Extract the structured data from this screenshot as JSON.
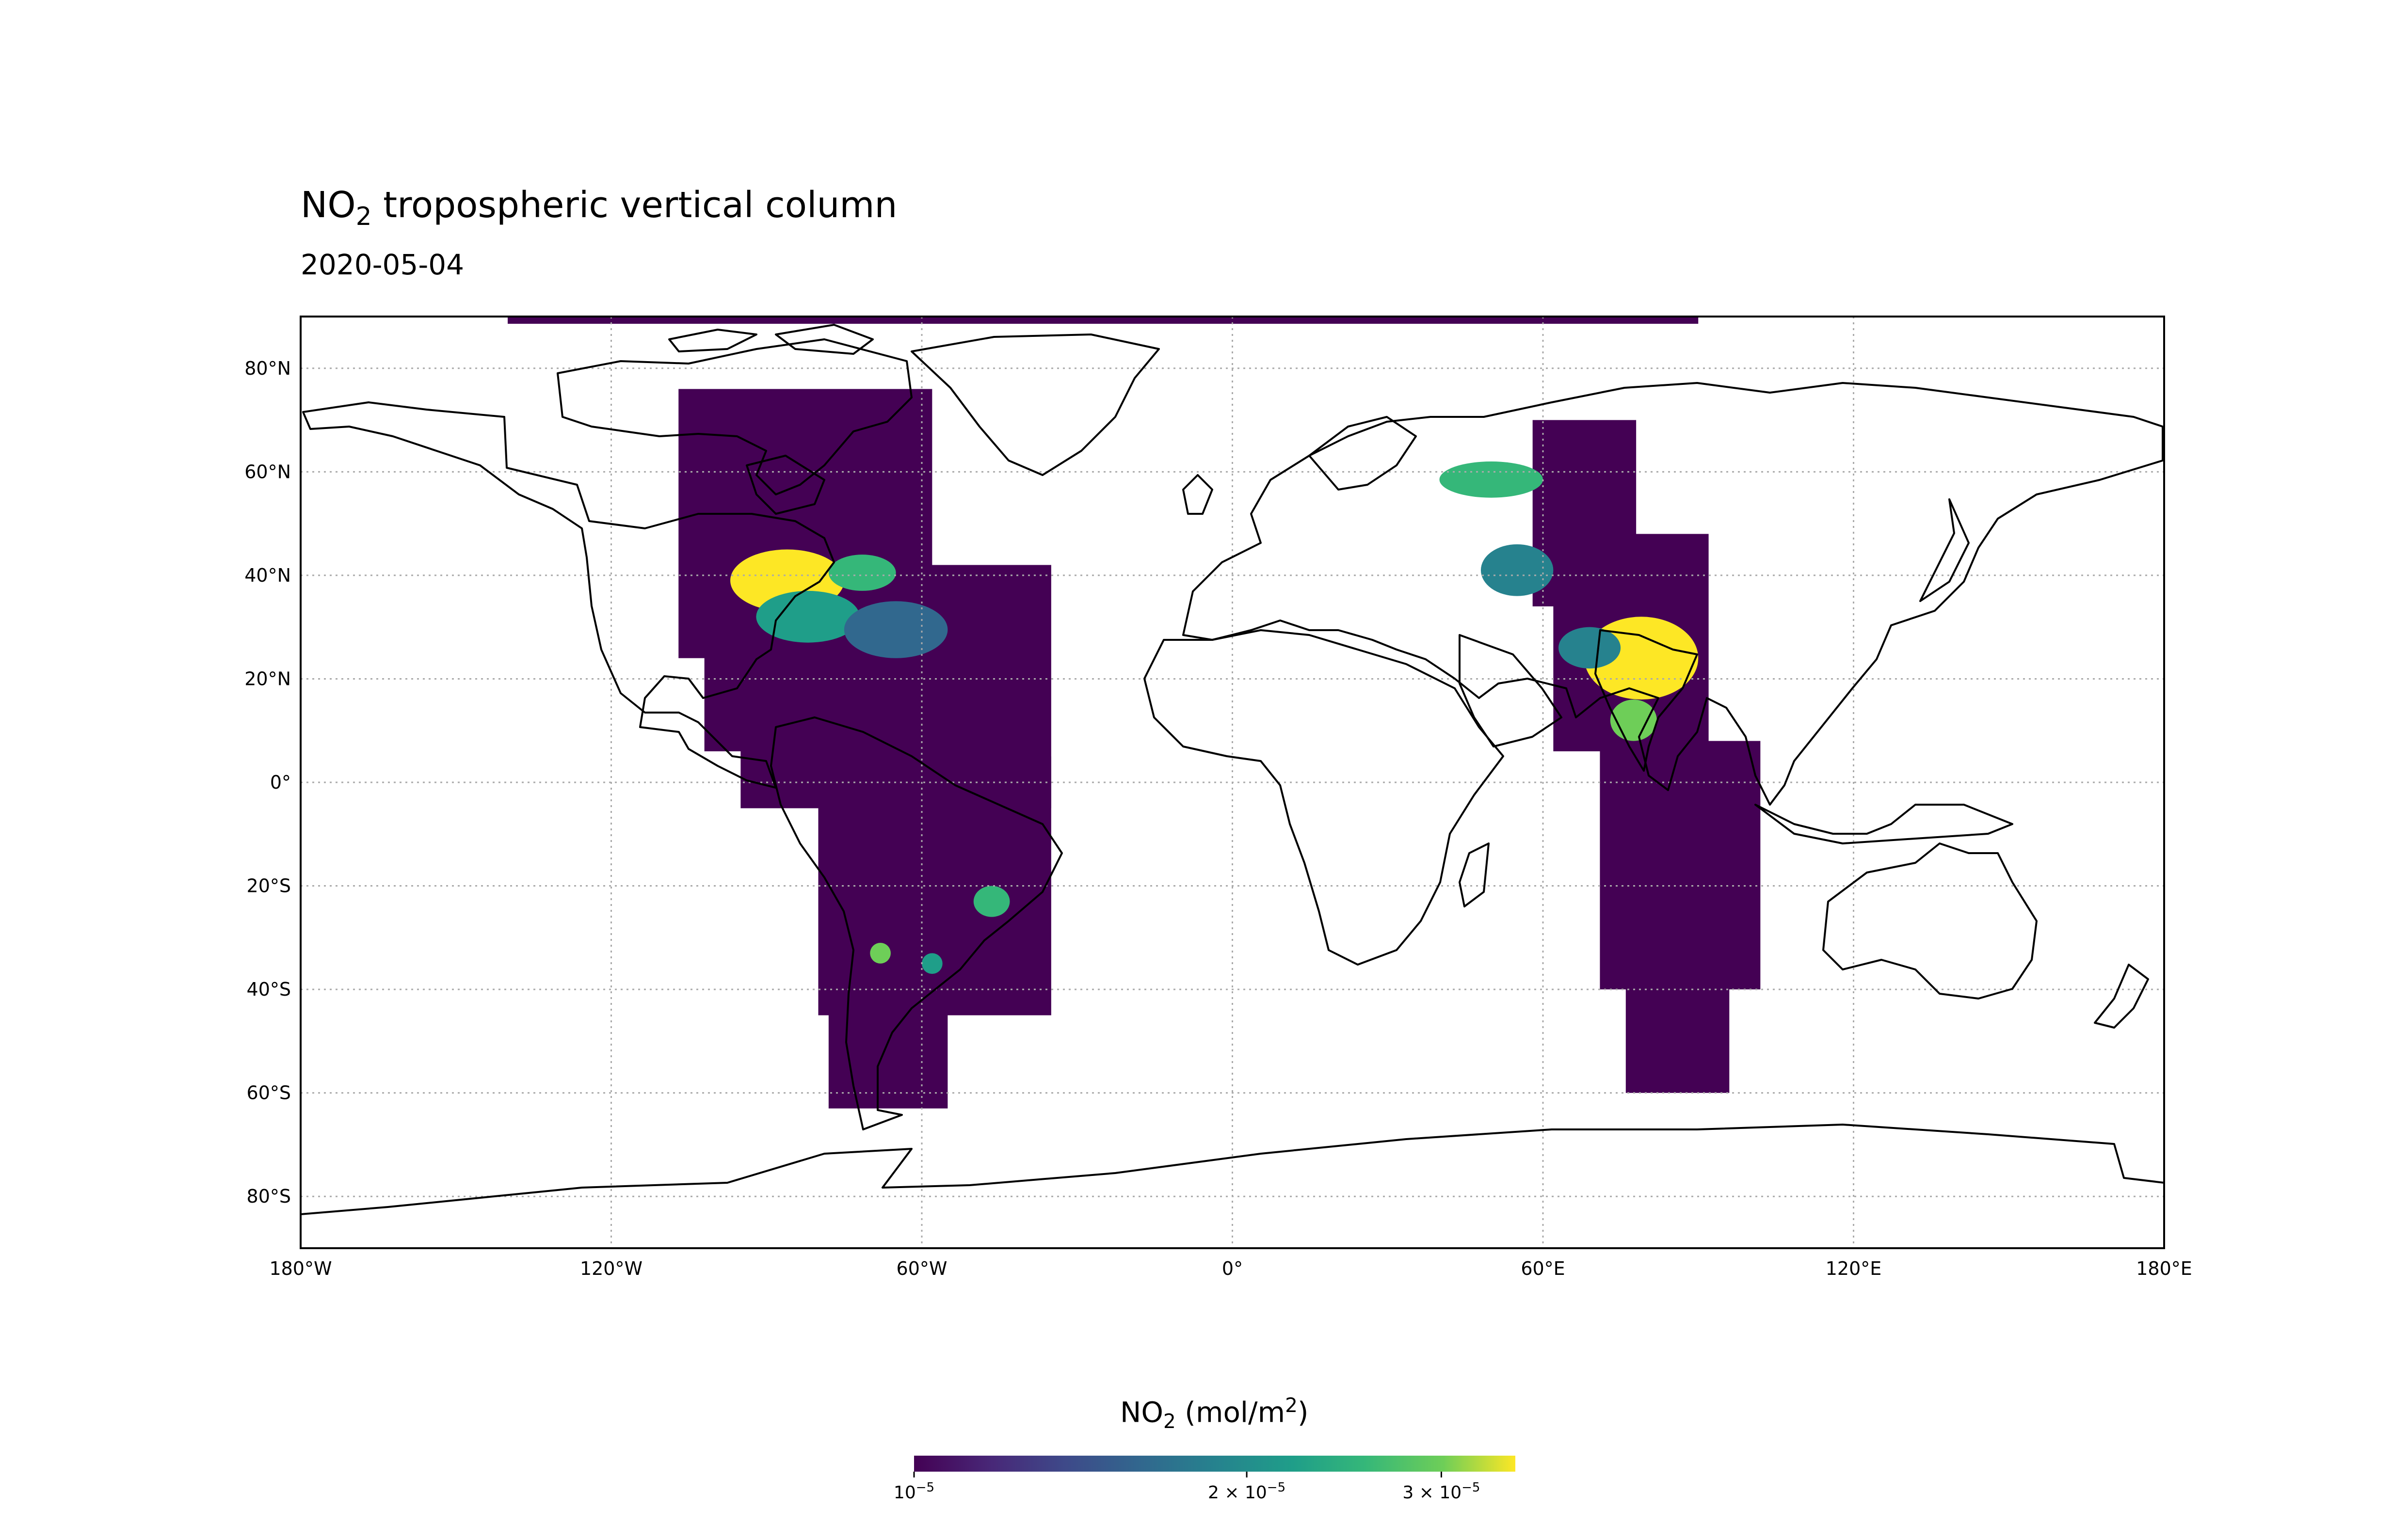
{
  "title": {
    "prefix": "NO",
    "sub": "2",
    "rest": " tropospheric vertical column"
  },
  "subtitle": "2020-05-04",
  "chart_data": {
    "type": "heatmap",
    "projection": "PlateCarree",
    "extent": {
      "lon": [
        -180,
        180
      ],
      "lat": [
        -90,
        90
      ]
    },
    "grid": "dotted",
    "x_ticks": [
      {
        "value": -180,
        "label": "180°W"
      },
      {
        "value": -120,
        "label": "120°W"
      },
      {
        "value": -60,
        "label": "60°W"
      },
      {
        "value": 0,
        "label": "0°"
      },
      {
        "value": 60,
        "label": "60°E"
      },
      {
        "value": 120,
        "label": "120°E"
      },
      {
        "value": 180,
        "label": "180°E"
      }
    ],
    "y_ticks": [
      {
        "value": 80,
        "label": "80°N"
      },
      {
        "value": 60,
        "label": "60°N"
      },
      {
        "value": 40,
        "label": "40°N"
      },
      {
        "value": 20,
        "label": "20°N"
      },
      {
        "value": 0,
        "label": "0°"
      },
      {
        "value": -20,
        "label": "20°S"
      },
      {
        "value": -40,
        "label": "40°S"
      },
      {
        "value": -60,
        "label": "60°S"
      },
      {
        "value": -80,
        "label": "80°S"
      }
    ],
    "colormap": "viridis",
    "colorbar": {
      "label": {
        "prefix": "NO",
        "sub": "2",
        "mid": " (mol/m",
        "sup": "2",
        "end": ")"
      },
      "scale": "log",
      "range": [
        1e-05,
        3.5e-05
      ],
      "ticks": [
        {
          "value": 1e-05,
          "label": "10",
          "exp": "−5"
        },
        {
          "value": 2e-05,
          "label": "2 × 10",
          "exp": "−5"
        },
        {
          "value": 3e-05,
          "label": "3 × 10",
          "exp": "−5"
        }
      ]
    },
    "swaths": [
      {
        "lon": [
          -107,
          -58
        ],
        "lat": [
          24,
          76
        ],
        "level": 0.0
      },
      {
        "lon": [
          -102,
          -72
        ],
        "lat": [
          6,
          30
        ],
        "level": 0.0
      },
      {
        "lon": [
          -95,
          -35
        ],
        "lat": [
          -5,
          42
        ],
        "level": 0.0
      },
      {
        "lon": [
          -80,
          -35
        ],
        "lat": [
          -45,
          5
        ],
        "level": 0.0
      },
      {
        "lon": [
          -78,
          -55
        ],
        "lat": [
          -63,
          -40
        ],
        "level": 0.0
      },
      {
        "lon": [
          58,
          78
        ],
        "lat": [
          34,
          70
        ],
        "level": 0.0
      },
      {
        "lon": [
          62,
          92
        ],
        "lat": [
          6,
          48
        ],
        "level": 0.0
      },
      {
        "lon": [
          71,
          102
        ],
        "lat": [
          -40,
          8
        ],
        "level": 0.0
      },
      {
        "lon": [
          76,
          96
        ],
        "lat": [
          -60,
          -38
        ],
        "level": 0.0
      },
      {
        "lon": [
          -140,
          90
        ],
        "lat": [
          88.6,
          90
        ],
        "level": 0.0
      }
    ],
    "hotspots": [
      {
        "lon": [
          -97,
          -75
        ],
        "lat": [
          33,
          45
        ],
        "level": 0.95
      },
      {
        "lon": [
          -92,
          -72
        ],
        "lat": [
          27,
          37
        ],
        "level": 0.6
      },
      {
        "lon": [
          -78,
          -65
        ],
        "lat": [
          37,
          44
        ],
        "level": 0.8
      },
      {
        "lon": [
          -75,
          -55
        ],
        "lat": [
          24,
          35
        ],
        "level": 0.4
      },
      {
        "lon": [
          40,
          60
        ],
        "lat": [
          55,
          62
        ],
        "level": 0.7
      },
      {
        "lon": [
          48,
          62
        ],
        "lat": [
          36,
          46
        ],
        "level": 0.55
      },
      {
        "lon": [
          68,
          90
        ],
        "lat": [
          16,
          32
        ],
        "level": 0.95
      },
      {
        "lon": [
          73,
          82
        ],
        "lat": [
          8,
          16
        ],
        "level": 0.85
      },
      {
        "lon": [
          63,
          75
        ],
        "lat": [
          22,
          30
        ],
        "level": 0.55
      },
      {
        "lon": [
          -50,
          -43
        ],
        "lat": [
          -26,
          -20
        ],
        "level": 0.8
      },
      {
        "lon": [
          -70,
          -66
        ],
        "lat": [
          -35,
          -31
        ],
        "level": 0.85
      },
      {
        "lon": [
          -60,
          -56
        ],
        "lat": [
          -37,
          -33
        ],
        "level": 0.6
      }
    ]
  }
}
